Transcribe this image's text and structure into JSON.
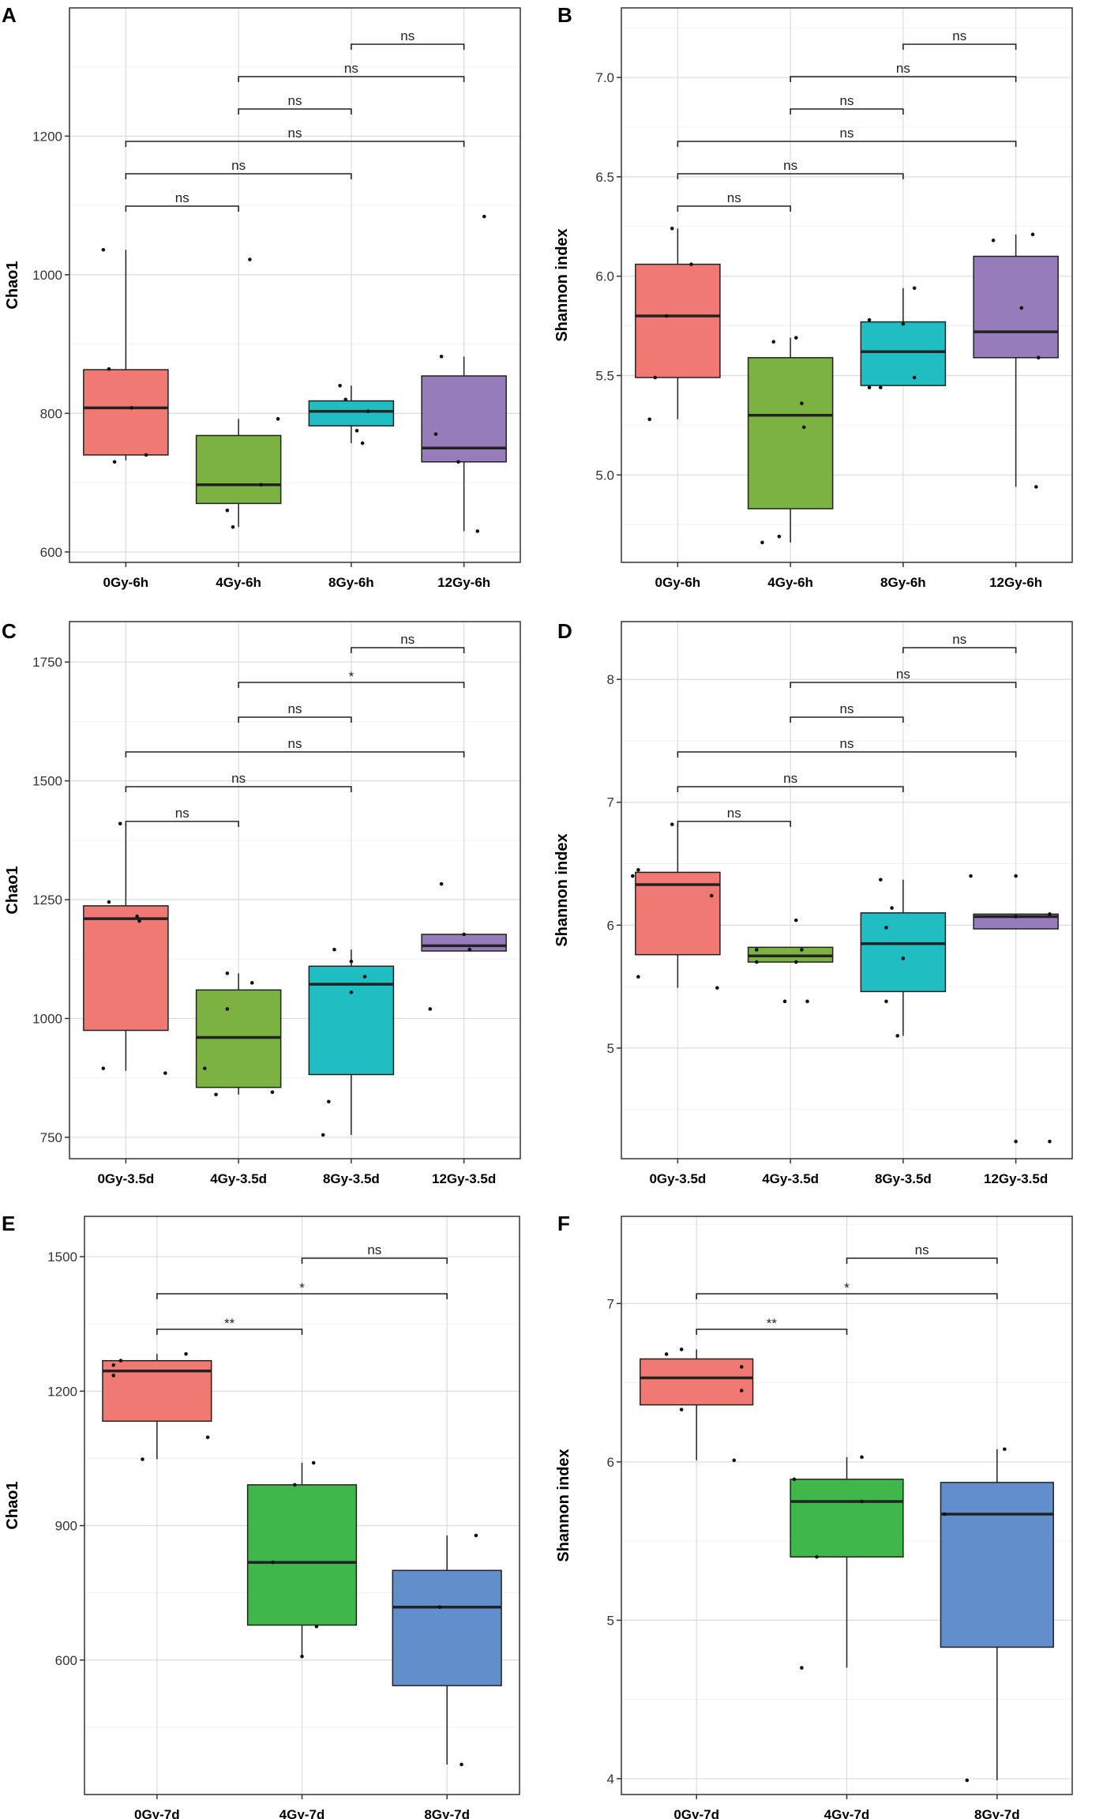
{
  "chart_data": [
    {
      "panel": "A",
      "type": "box",
      "ylabel": "Chao1",
      "ylim": [
        585,
        1385
      ],
      "yticks": [
        600,
        800,
        1000,
        1200
      ],
      "categories": [
        "0Gy-6h",
        "4Gy-6h",
        "8Gy-6h",
        "12Gy-6h"
      ],
      "colors": [
        "#F07A73",
        "#7BB241",
        "#20BDC2",
        "#967CBA"
      ],
      "boxes": [
        {
          "q1": 740,
          "median": 808,
          "q3": 863,
          "low": 732,
          "high": 1036
        },
        {
          "q1": 670,
          "median": 697,
          "q3": 768,
          "low": 636,
          "high": 792
        },
        {
          "q1": 782,
          "median": 803,
          "q3": 818,
          "low": 757,
          "high": 840
        },
        {
          "q1": 730,
          "median": 750,
          "q3": 854,
          "low": 630,
          "high": 882
        }
      ],
      "points": [
        [
          [
            -0.2,
            1036
          ],
          [
            -0.15,
            864
          ],
          [
            0.05,
            808
          ],
          [
            -0.1,
            730
          ],
          [
            0.18,
            740
          ]
        ],
        [
          [
            0.1,
            1022
          ],
          [
            0.35,
            792
          ],
          [
            -0.1,
            660
          ],
          [
            -0.05,
            636
          ],
          [
            0.2,
            697
          ]
        ],
        [
          [
            -0.1,
            840
          ],
          [
            0.05,
            775
          ],
          [
            0.1,
            757
          ],
          [
            -0.05,
            820
          ],
          [
            0.15,
            803
          ]
        ],
        [
          [
            0.18,
            1084
          ],
          [
            -0.2,
            882
          ],
          [
            -0.25,
            770
          ],
          [
            -0.05,
            730
          ],
          [
            0.12,
            630
          ]
        ]
      ],
      "comparisons": [
        {
          "from": 2,
          "to": 3,
          "label": "ns"
        },
        {
          "from": 1,
          "to": 3,
          "label": "ns"
        },
        {
          "from": 1,
          "to": 2,
          "label": "ns"
        },
        {
          "from": 0,
          "to": 3,
          "label": "ns"
        },
        {
          "from": 0,
          "to": 2,
          "label": "ns"
        },
        {
          "from": 0,
          "to": 1,
          "label": "ns"
        }
      ]
    },
    {
      "panel": "B",
      "type": "box",
      "ylabel": "Shannon index",
      "ylim": [
        4.56,
        7.35
      ],
      "yticks": [
        5.0,
        5.5,
        6.0,
        6.5,
        7.0
      ],
      "categories": [
        "0Gy-6h",
        "4Gy-6h",
        "8Gy-6h",
        "12Gy-6h"
      ],
      "colors": [
        "#F07A73",
        "#7BB241",
        "#20BDC2",
        "#967CBA"
      ],
      "boxes": [
        {
          "q1": 5.49,
          "median": 5.8,
          "q3": 6.06,
          "low": 5.28,
          "high": 6.24
        },
        {
          "q1": 4.83,
          "median": 5.3,
          "q3": 5.59,
          "low": 4.66,
          "high": 5.69
        },
        {
          "q1": 5.45,
          "median": 5.62,
          "q3": 5.77,
          "low": 5.45,
          "high": 5.94
        },
        {
          "q1": 5.59,
          "median": 5.72,
          "q3": 6.1,
          "low": 4.94,
          "high": 6.21
        }
      ],
      "points": [
        [
          [
            -0.05,
            6.24
          ],
          [
            0.12,
            6.06
          ],
          [
            -0.1,
            5.8
          ],
          [
            -0.2,
            5.49
          ],
          [
            -0.25,
            5.28
          ]
        ],
        [
          [
            -0.15,
            5.67
          ],
          [
            0.05,
            5.69
          ],
          [
            0.1,
            5.36
          ],
          [
            0.12,
            5.24
          ],
          [
            -0.1,
            4.69
          ],
          [
            -0.25,
            4.66
          ]
        ],
        [
          [
            0.1,
            5.94
          ],
          [
            -0.3,
            5.78
          ],
          [
            0.0,
            5.76
          ],
          [
            -0.3,
            5.44
          ],
          [
            -0.2,
            5.44
          ],
          [
            0.1,
            5.49
          ]
        ],
        [
          [
            -0.2,
            6.18
          ],
          [
            0.15,
            6.21
          ],
          [
            0.05,
            5.84
          ],
          [
            0.2,
            5.59
          ],
          [
            0.18,
            4.94
          ]
        ]
      ],
      "comparisons": [
        {
          "from": 2,
          "to": 3,
          "label": "ns"
        },
        {
          "from": 1,
          "to": 3,
          "label": "ns"
        },
        {
          "from": 1,
          "to": 2,
          "label": "ns"
        },
        {
          "from": 0,
          "to": 3,
          "label": "ns"
        },
        {
          "from": 0,
          "to": 2,
          "label": "ns"
        },
        {
          "from": 0,
          "to": 1,
          "label": "ns"
        }
      ]
    },
    {
      "panel": "C",
      "type": "box",
      "ylabel": "Chao1",
      "ylim": [
        705,
        1835
      ],
      "yticks": [
        750,
        1000,
        1250,
        1500,
        1750
      ],
      "categories": [
        "0Gy-3.5d",
        "4Gy-3.5d",
        "8Gy-3.5d",
        "12Gy-3.5d"
      ],
      "colors": [
        "#F07A73",
        "#7BB241",
        "#20BDC2",
        "#967CBA"
      ],
      "boxes": [
        {
          "q1": 975,
          "median": 1210,
          "q3": 1237,
          "low": 890,
          "high": 1410
        },
        {
          "q1": 855,
          "median": 960,
          "q3": 1060,
          "low": 840,
          "high": 1095
        },
        {
          "q1": 882,
          "median": 1072,
          "q3": 1110,
          "low": 755,
          "high": 1145
        },
        {
          "q1": 1142,
          "median": 1153,
          "q3": 1177,
          "low": 1142,
          "high": 1177
        }
      ],
      "points": [
        [
          [
            -0.05,
            1410
          ],
          [
            -0.15,
            1245
          ],
          [
            0.1,
            1215
          ],
          [
            0.12,
            1205
          ],
          [
            -0.2,
            895
          ],
          [
            0.35,
            885
          ]
        ],
        [
          [
            -0.1,
            1095
          ],
          [
            0.12,
            1075
          ],
          [
            -0.1,
            1020
          ],
          [
            -0.3,
            895
          ],
          [
            -0.2,
            840
          ],
          [
            0.3,
            845
          ]
        ],
        [
          [
            -0.15,
            1145
          ],
          [
            0.0,
            1120
          ],
          [
            0.12,
            1088
          ],
          [
            0.0,
            1055
          ],
          [
            -0.2,
            825
          ],
          [
            -0.25,
            755
          ]
        ],
        [
          [
            -0.2,
            1283
          ],
          [
            0.0,
            1177
          ],
          [
            -0.3,
            1020
          ],
          [
            0.05,
            1145
          ]
        ]
      ],
      "comparisons": [
        {
          "from": 2,
          "to": 3,
          "label": "ns"
        },
        {
          "from": 1,
          "to": 3,
          "label": "*"
        },
        {
          "from": 1,
          "to": 2,
          "label": "ns"
        },
        {
          "from": 0,
          "to": 3,
          "label": "ns"
        },
        {
          "from": 0,
          "to": 2,
          "label": "ns"
        },
        {
          "from": 0,
          "to": 1,
          "label": "ns"
        }
      ]
    },
    {
      "panel": "D",
      "type": "box",
      "ylabel": "Shannon index",
      "ylim": [
        4.1,
        8.47
      ],
      "yticks": [
        5,
        6,
        7,
        8
      ],
      "categories": [
        "0Gy-3.5d",
        "4Gy-3.5d",
        "8Gy-3.5d",
        "12Gy-3.5d"
      ],
      "colors": [
        "#F07A73",
        "#7BB241",
        "#20BDC2",
        "#967CBA"
      ],
      "boxes": [
        {
          "q1": 5.76,
          "median": 6.33,
          "q3": 6.43,
          "low": 5.49,
          "high": 6.82
        },
        {
          "q1": 5.7,
          "median": 5.75,
          "q3": 5.82,
          "low": 5.7,
          "high": 5.82
        },
        {
          "q1": 5.46,
          "median": 5.85,
          "q3": 6.1,
          "low": 5.1,
          "high": 6.37
        },
        {
          "q1": 5.97,
          "median": 6.07,
          "q3": 6.09,
          "low": 5.97,
          "high": 6.09
        }
      ],
      "points": [
        [
          [
            -0.4,
            6.4
          ],
          [
            -0.35,
            6.45
          ],
          [
            0.3,
            6.24
          ],
          [
            -0.05,
            6.82
          ],
          [
            -0.35,
            5.58
          ],
          [
            0.35,
            5.49
          ]
        ],
        [
          [
            0.05,
            6.04
          ],
          [
            -0.3,
            5.8
          ],
          [
            0.1,
            5.8
          ],
          [
            -0.3,
            5.7
          ],
          [
            0.05,
            5.7
          ],
          [
            -0.05,
            5.38
          ],
          [
            0.15,
            5.38
          ]
        ],
        [
          [
            -0.2,
            6.37
          ],
          [
            -0.1,
            6.14
          ],
          [
            -0.15,
            5.98
          ],
          [
            0.0,
            5.73
          ],
          [
            -0.15,
            5.38
          ],
          [
            -0.05,
            5.1
          ]
        ],
        [
          [
            -0.4,
            6.4
          ],
          [
            0.0,
            6.4
          ],
          [
            0.0,
            6.07
          ],
          [
            0.3,
            6.09
          ],
          [
            0.0,
            4.24
          ],
          [
            0.3,
            4.24
          ]
        ]
      ],
      "comparisons": [
        {
          "from": 2,
          "to": 3,
          "label": "ns"
        },
        {
          "from": 1,
          "to": 3,
          "label": "ns"
        },
        {
          "from": 1,
          "to": 2,
          "label": "ns"
        },
        {
          "from": 0,
          "to": 3,
          "label": "ns"
        },
        {
          "from": 0,
          "to": 2,
          "label": "ns"
        },
        {
          "from": 0,
          "to": 1,
          "label": "ns"
        }
      ]
    },
    {
      "panel": "E",
      "type": "box",
      "ylabel": "Chao1",
      "ylim": [
        300,
        1590
      ],
      "yticks": [
        600,
        900,
        1200,
        1500
      ],
      "categories": [
        "0Gy-7d",
        "4Gy-7d",
        "8Gy-7d"
      ],
      "colors": [
        "#F07A73",
        "#3FB74A",
        "#628ECB"
      ],
      "boxes": [
        {
          "q1": 1133,
          "median": 1245,
          "q3": 1268,
          "low": 1048,
          "high": 1283
        },
        {
          "q1": 678,
          "median": 818,
          "q3": 991,
          "low": 608,
          "high": 1040
        },
        {
          "q1": 543,
          "median": 718,
          "q3": 800,
          "low": 367,
          "high": 878
        }
      ],
      "points": [
        [
          [
            -0.3,
            1258
          ],
          [
            -0.3,
            1235
          ],
          [
            -0.25,
            1268
          ],
          [
            0.2,
            1283
          ],
          [
            -0.1,
            1048
          ],
          [
            0.35,
            1097
          ]
        ],
        [
          [
            -0.05,
            991
          ],
          [
            0.08,
            1040
          ],
          [
            -0.2,
            818
          ],
          [
            0.1,
            675
          ],
          [
            0.0,
            608
          ]
        ],
        [
          [
            0.2,
            878
          ],
          [
            -0.05,
            718
          ],
          [
            0.1,
            367
          ]
        ]
      ],
      "comparisons": [
        {
          "from": 1,
          "to": 2,
          "label": "ns"
        },
        {
          "from": 0,
          "to": 2,
          "label": "*"
        },
        {
          "from": 0,
          "to": 1,
          "label": "**"
        }
      ]
    },
    {
      "panel": "F",
      "type": "box",
      "ylabel": "Shannon index",
      "ylim": [
        3.9,
        7.55
      ],
      "yticks": [
        4,
        5,
        6,
        7
      ],
      "categories": [
        "0Gy-7d",
        "4Gy-7d",
        "8Gy-7d"
      ],
      "colors": [
        "#F07A73",
        "#3FB74A",
        "#628ECB"
      ],
      "boxes": [
        {
          "q1": 6.36,
          "median": 6.53,
          "q3": 6.65,
          "low": 6.01,
          "high": 6.71
        },
        {
          "q1": 5.4,
          "median": 5.75,
          "q3": 5.89,
          "low": 4.7,
          "high": 6.03
        },
        {
          "q1": 4.83,
          "median": 5.67,
          "q3": 5.87,
          "low": 3.99,
          "high": 6.08
        }
      ],
      "points": [
        [
          [
            -0.2,
            6.68
          ],
          [
            -0.1,
            6.71
          ],
          [
            0.3,
            6.6
          ],
          [
            0.3,
            6.45
          ],
          [
            -0.1,
            6.33
          ],
          [
            0.25,
            6.01
          ]
        ],
        [
          [
            -0.35,
            5.89
          ],
          [
            0.1,
            6.03
          ],
          [
            0.1,
            5.75
          ],
          [
            -0.2,
            5.4
          ],
          [
            -0.3,
            4.7
          ]
        ],
        [
          [
            0.05,
            6.08
          ],
          [
            -0.35,
            5.67
          ],
          [
            -0.2,
            3.99
          ]
        ]
      ],
      "comparisons": [
        {
          "from": 1,
          "to": 2,
          "label": "ns"
        },
        {
          "from": 0,
          "to": 2,
          "label": "*"
        },
        {
          "from": 0,
          "to": 1,
          "label": "**"
        }
      ]
    }
  ]
}
